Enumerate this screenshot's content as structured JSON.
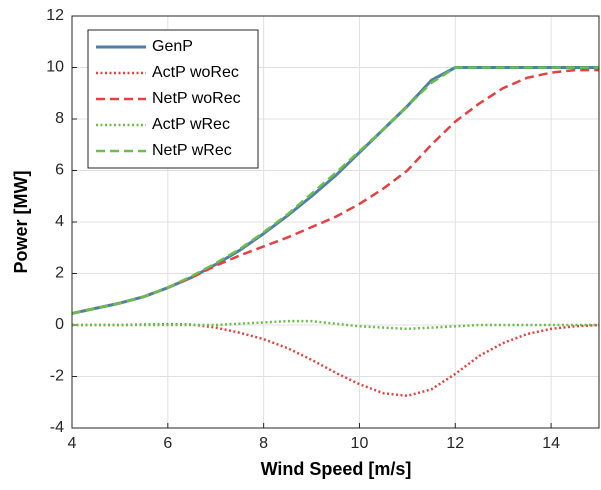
{
  "chart_data": {
    "type": "line",
    "xlabel": "Wind Speed [m/s]",
    "ylabel": "Power [MW]",
    "x": [
      4,
      4.5,
      5,
      5.5,
      6,
      6.5,
      7,
      7.5,
      8,
      8.5,
      9,
      9.5,
      10,
      10.5,
      11,
      11.5,
      12,
      12.5,
      13,
      13.5,
      14,
      14.5,
      15
    ],
    "series": [
      {
        "name": "GenP",
        "color": "#4f7fa8",
        "style": "solid",
        "values": [
          0.45,
          0.65,
          0.85,
          1.1,
          1.45,
          1.85,
          2.35,
          2.9,
          3.55,
          4.25,
          5.0,
          5.8,
          6.7,
          7.6,
          8.5,
          9.5,
          10,
          10,
          10,
          10,
          10,
          10,
          10
        ]
      },
      {
        "name": "ActP woRec",
        "color": "#e84040",
        "style": "dotted",
        "values": [
          0,
          0,
          0,
          0.02,
          0.03,
          0.02,
          -0.1,
          -0.3,
          -0.55,
          -0.9,
          -1.35,
          -1.85,
          -2.3,
          -2.65,
          -2.75,
          -2.5,
          -1.9,
          -1.2,
          -0.7,
          -0.35,
          -0.15,
          -0.05,
          0
        ]
      },
      {
        "name": "NetP woRec",
        "color": "#e84040",
        "style": "dashed",
        "values": [
          0.45,
          0.65,
          0.85,
          1.1,
          1.45,
          1.85,
          2.3,
          2.7,
          3.05,
          3.4,
          3.8,
          4.2,
          4.7,
          5.3,
          6.0,
          7.0,
          7.9,
          8.6,
          9.2,
          9.6,
          9.8,
          9.9,
          9.9
        ]
      },
      {
        "name": "ActP wRec",
        "color": "#6abf4b",
        "style": "dotted",
        "values": [
          0,
          0,
          0,
          0,
          0,
          0,
          0,
          0.05,
          0.1,
          0.15,
          0.15,
          0.05,
          -0.05,
          -0.1,
          -0.15,
          -0.1,
          -0.05,
          0,
          0,
          0,
          0,
          0,
          0
        ]
      },
      {
        "name": "NetP wRec",
        "color": "#6abf4b",
        "style": "dashed",
        "values": [
          0.45,
          0.65,
          0.85,
          1.1,
          1.45,
          1.9,
          2.4,
          2.95,
          3.6,
          4.3,
          5.1,
          5.9,
          6.75,
          7.6,
          8.5,
          9.4,
          10,
          10,
          10,
          10,
          10,
          10,
          10
        ]
      }
    ],
    "xlim": [
      4,
      15
    ],
    "xticks": [
      4,
      6,
      8,
      10,
      12,
      14
    ],
    "ylim": [
      -4,
      12
    ],
    "yticks": [
      -4,
      -2,
      0,
      2,
      4,
      6,
      8,
      10,
      12
    ],
    "grid": true,
    "legend": "top-left"
  }
}
